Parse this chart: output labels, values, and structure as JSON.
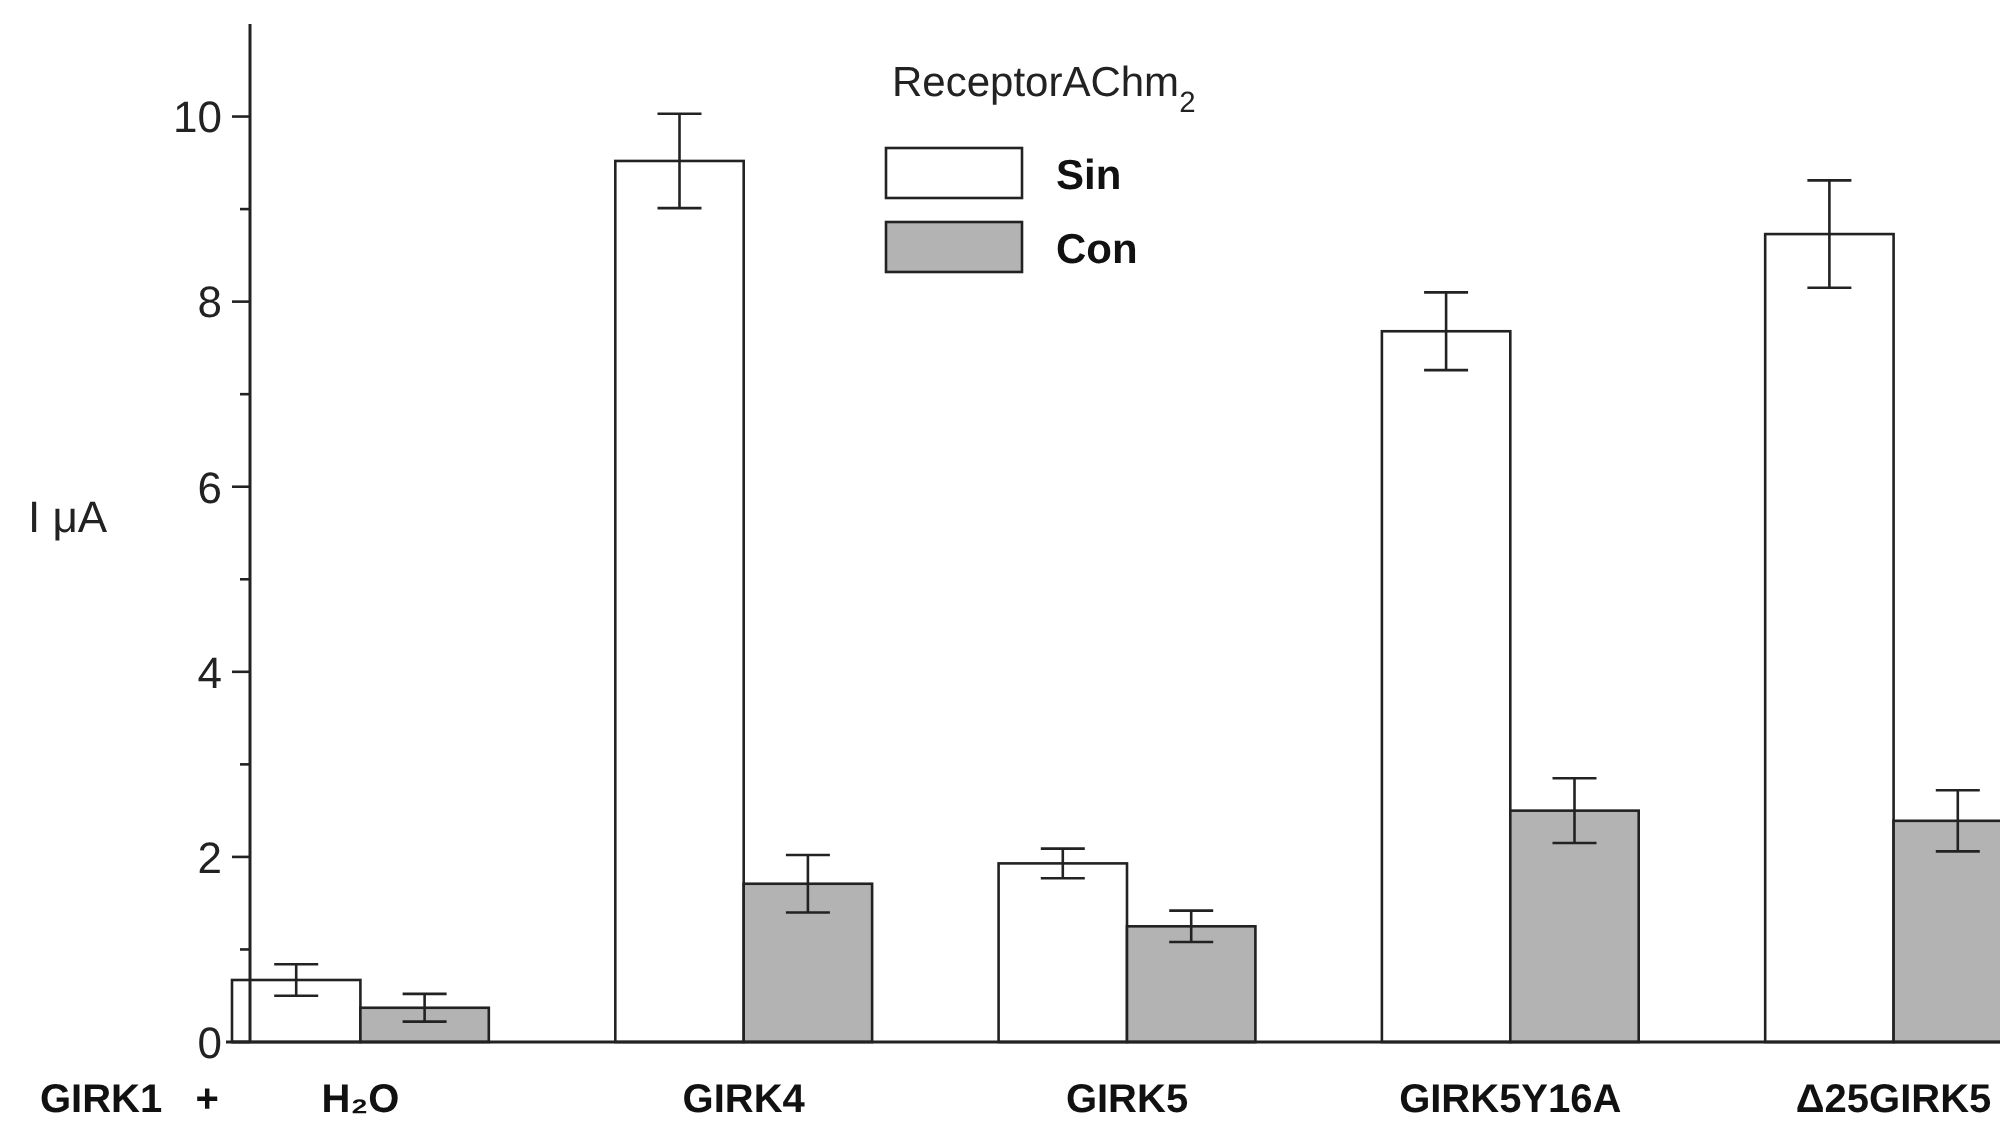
{
  "chart_data": {
    "type": "bar",
    "categories": [
      "H₂O",
      "GIRK4",
      "GIRK5",
      "GIRK5Y16A",
      "Δ25GIRK5"
    ],
    "series": [
      {
        "name": "Sin",
        "color": "#ffffff",
        "values": [
          0.67,
          9.52,
          1.93,
          7.68,
          8.73
        ],
        "errors": [
          0.17,
          0.51,
          0.16,
          0.42,
          0.58
        ]
      },
      {
        "name": "Con",
        "color": "#b3b3b3",
        "values": [
          0.37,
          1.71,
          1.25,
          2.5,
          2.39
        ],
        "errors": [
          0.15,
          0.31,
          0.17,
          0.35,
          0.33
        ]
      }
    ],
    "ylabel": "I μA",
    "legend_title": "ReceptorAChm$_{2}$",
    "legend": "top",
    "annotations": [
      "GIRK1   +"
    ],
    "ylim": [
      0,
      11
    ],
    "yticks": [
      0,
      {
        "value": 1,
        "label": null
      },
      2,
      {
        "value": 3,
        "label": null
      },
      4,
      {
        "value": 5,
        "label": null
      },
      6,
      {
        "value": 7,
        "label": null
      },
      8,
      {
        "value": 9,
        "label": null
      },
      10
    ],
    "grid": false
  }
}
